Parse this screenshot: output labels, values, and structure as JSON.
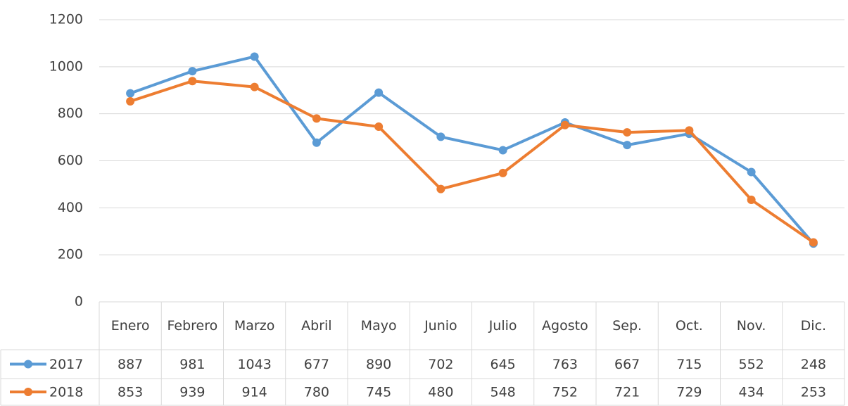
{
  "chart_data": {
    "type": "line",
    "categories": [
      "Enero",
      "Febrero",
      "Marzo",
      "Abril",
      "Mayo",
      "Junio",
      "Julio",
      "Agosto",
      "Sep.",
      "Oct.",
      "Nov.",
      "Dic."
    ],
    "series": [
      {
        "name": "2017",
        "color": "#5b9bd5",
        "values": [
          887,
          981,
          1043,
          677,
          890,
          702,
          645,
          763,
          667,
          715,
          552,
          248
        ]
      },
      {
        "name": "2018",
        "color": "#ed7d31",
        "values": [
          853,
          939,
          914,
          780,
          745,
          480,
          548,
          752,
          721,
          729,
          434,
          253
        ]
      }
    ],
    "ylim": [
      0,
      1200
    ],
    "yticks": [
      0,
      200,
      400,
      600,
      800,
      1000,
      1200
    ],
    "grid": true,
    "data_table": true
  }
}
